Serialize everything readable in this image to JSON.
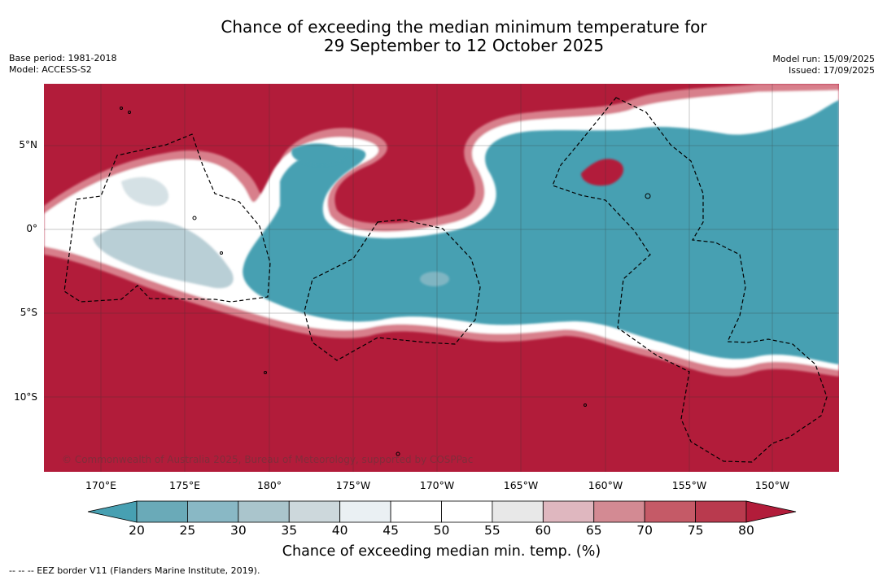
{
  "title": {
    "line1": "Chance of exceeding the median minimum temperature for",
    "line2": "29 September to 12 October 2025"
  },
  "meta": {
    "base_period": "Base period: 1981-2018",
    "model": "Model: ACCESS-S2",
    "model_run": "Model run: 15/09/2025",
    "issued": "Issued: 17/09/2025"
  },
  "map": {
    "lat_labels": [
      "5°N",
      "0°",
      "5°S",
      "10°S"
    ],
    "lon_labels": [
      "170°E",
      "175°E",
      "180°",
      "175°W",
      "170°W",
      "165°W",
      "160°W",
      "155°W",
      "150°W"
    ],
    "copyright": "© Commonwealth of Australia 2025, Bureau of Meteorology, supported by COSPPac",
    "colors": {
      "high": "#b21c3a",
      "low": "#47a0b2",
      "neutral": "#ffffff"
    }
  },
  "colorbar": {
    "ticks": [
      "20",
      "25",
      "30",
      "35",
      "40",
      "45",
      "50",
      "55",
      "60",
      "65",
      "70",
      "75",
      "80"
    ],
    "colors": [
      "#47a0b2",
      "#6aaab8",
      "#89b8c5",
      "#aac5cc",
      "#cdd8dc",
      "#eaf0f3",
      "#ffffff",
      "#ffffff",
      "#e8e8e8",
      "#dfb7bf",
      "#d38a93",
      "#c55a67",
      "#b93a4e",
      "#b21c3a"
    ],
    "title": "Chance of exceeding median min. temp. (%)"
  },
  "footnote": "--  --  -- EEZ border V11 (Flanders Marine Institute, 2019)."
}
